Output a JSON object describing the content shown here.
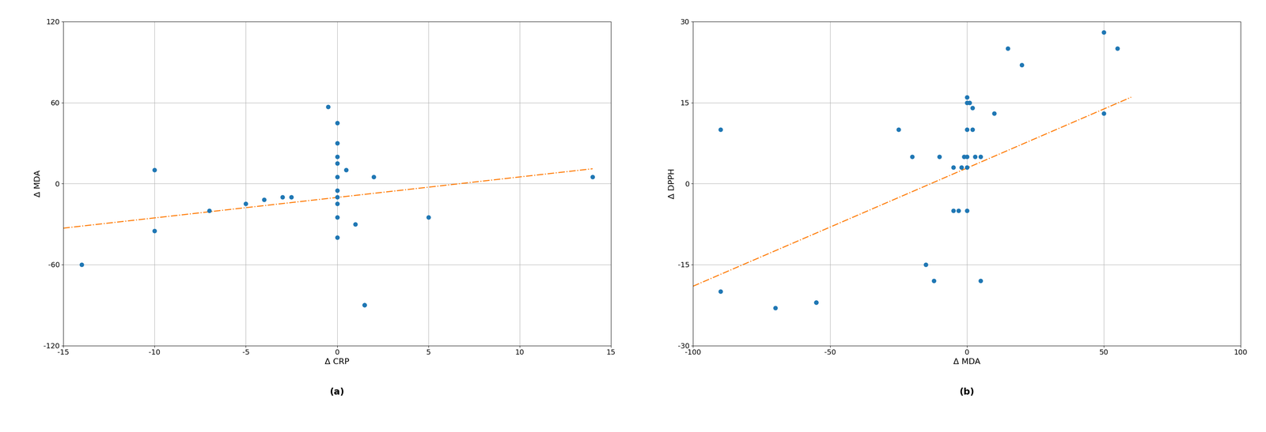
{
  "chart_data": [
    {
      "type": "scatter",
      "annotation": "(a)",
      "x_label": "Δ CRP",
      "y_label": "Δ MDA",
      "xlim": [
        -15,
        15
      ],
      "ylim": [
        -120,
        120
      ],
      "xticks": [
        -15,
        -10,
        -5,
        0,
        5,
        10,
        15
      ],
      "yticks": [
        -120,
        -60,
        0,
        60,
        120
      ],
      "grid": true,
      "series": [
        {
          "type": "scatter",
          "marker": "circle",
          "x": [
            -14,
            -10,
            -10,
            -7,
            -5,
            -4,
            -3,
            -2.5,
            -0.5,
            0,
            0,
            0,
            0,
            0,
            0,
            0,
            0,
            0,
            0,
            0.5,
            1,
            1.5,
            1.5,
            2,
            5,
            14
          ],
          "values": [
            -60,
            10,
            -35,
            -20,
            -15,
            -12,
            -10,
            -10,
            57,
            45,
            30,
            20,
            15,
            5,
            -5,
            -10,
            -15,
            -25,
            -40,
            10,
            -30,
            -90,
            -90,
            5,
            -25,
            5
          ]
        },
        {
          "type": "line",
          "line_style": "dashdot",
          "x": [
            -15,
            14
          ],
          "values": [
            -33,
            11
          ]
        }
      ]
    },
    {
      "type": "scatter",
      "annotation": "(b)",
      "x_label": "Δ MDA",
      "y_label": "Δ DPPH",
      "xlim": [
        -100,
        100
      ],
      "ylim": [
        -30,
        30
      ],
      "xticks": [
        -100,
        -50,
        0,
        50,
        100
      ],
      "yticks": [
        -30,
        -15,
        0,
        15,
        30
      ],
      "grid": true,
      "series": [
        {
          "type": "scatter",
          "marker": "circle",
          "x": [
            -90,
            -90,
            -70,
            -55,
            -55,
            -25,
            -20,
            -15,
            -12,
            -10,
            -5,
            -5,
            -3,
            -2,
            -1,
            0,
            0,
            0,
            0,
            0,
            0,
            1,
            2,
            2,
            3,
            5,
            5,
            10,
            15,
            20,
            50,
            50,
            55
          ],
          "values": [
            10,
            -20,
            -23,
            -22,
            -22,
            10,
            5,
            -15,
            -18,
            5,
            3,
            -5,
            -5,
            3,
            5,
            16,
            15,
            10,
            5,
            3,
            -5,
            15,
            14,
            10,
            5,
            5,
            -18,
            13,
            25,
            22,
            13,
            28,
            25
          ]
        },
        {
          "type": "line",
          "line_style": "dashdot",
          "x": [
            -100,
            60
          ],
          "values": [
            -19,
            16
          ]
        }
      ]
    }
  ]
}
